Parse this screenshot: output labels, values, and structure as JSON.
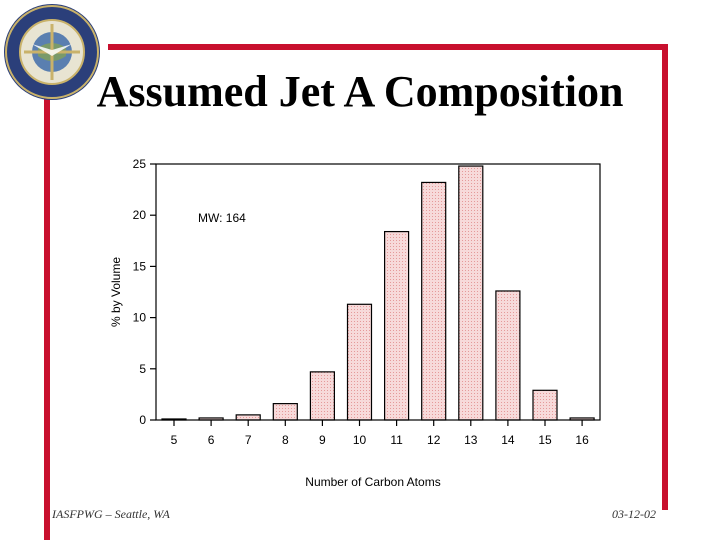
{
  "slide": {
    "title": "Assumed Jet A Composition",
    "footer_left": "IASFPWG – Seattle, WA",
    "footer_right": "03-12-02",
    "logo_text": "FEDERAL AVIATION ADMINISTRATION",
    "accent_color": "#c8102e"
  },
  "chart_data": {
    "type": "bar",
    "categories": [
      "5",
      "6",
      "7",
      "8",
      "9",
      "10",
      "11",
      "12",
      "13",
      "14",
      "15",
      "16"
    ],
    "values": [
      0.1,
      0.2,
      0.5,
      1.6,
      4.7,
      11.3,
      18.4,
      23.2,
      24.8,
      12.6,
      2.9,
      0.2
    ],
    "xlabel": "Number of Carbon Atoms",
    "ylabel": "% by Volume",
    "ylim": [
      0,
      25
    ],
    "yticks": [
      0,
      5,
      10,
      15,
      20,
      25
    ],
    "annotation": "MW: 164",
    "bar_fill": "#f2c6c6",
    "bar_stroke": "#000000",
    "grid": false
  }
}
